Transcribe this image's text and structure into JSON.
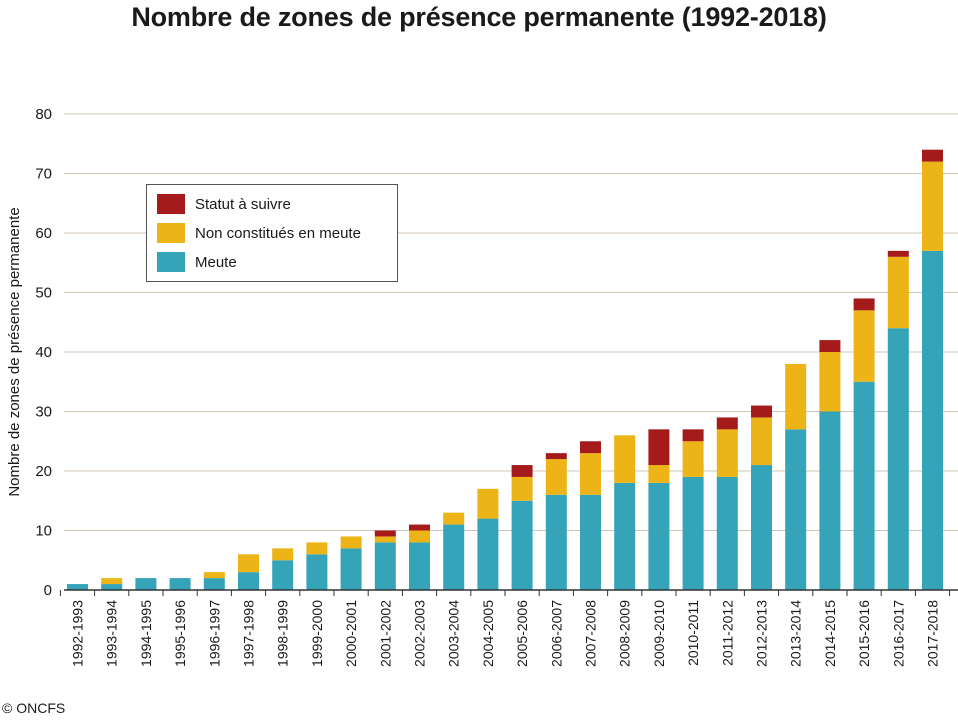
{
  "title": "Nombre de zones de présence permanente (1992-2018)",
  "credit": "© ONCFS",
  "colors": {
    "meute": "#35a4b8",
    "non_constitues": "#ecb416",
    "statut": "#a51b1b",
    "grid": "#cfc4b4",
    "axis": "#333333"
  },
  "legend": {
    "statut": "Statut à suivre",
    "non_constitues": "Non constitués en meute",
    "meute": "Meute"
  },
  "chart_data": {
    "type": "bar",
    "stacked": true,
    "title": "Nombre de zones de présence permanente (1992-2018)",
    "xlabel": "",
    "ylabel": "Nombre de zones de présence permanente",
    "ylim": [
      0,
      80
    ],
    "yticks": [
      0,
      10,
      20,
      30,
      40,
      50,
      60,
      70,
      80
    ],
    "grid": true,
    "legend_position": "top-left",
    "categories": [
      "1992-1993",
      "1993-1994",
      "1994-1995",
      "1995-1996",
      "1996-1997",
      "1997-1998",
      "1998-1999",
      "1999-2000",
      "2000-2001",
      "2001-2002",
      "2002-2003",
      "2003-2004",
      "2004-2005",
      "2005-2006",
      "2006-2007",
      "2007-2008",
      "2008-2009",
      "2009-2010",
      "2010-2011",
      "2011-2012",
      "2012-2013",
      "2013-2014",
      "2014-2015",
      "2015-2016",
      "2016-2017",
      "2017-2018"
    ],
    "series": [
      {
        "name": "Meute",
        "color": "#35a4b8",
        "values": [
          1,
          1,
          2,
          2,
          2,
          3,
          5,
          6,
          7,
          8,
          8,
          11,
          12,
          15,
          16,
          16,
          18,
          18,
          19,
          19,
          21,
          27,
          30,
          35,
          44,
          57
        ]
      },
      {
        "name": "Non constitués en meute",
        "color": "#ecb416",
        "values": [
          0,
          1,
          0,
          0,
          1,
          3,
          2,
          2,
          2,
          1,
          2,
          2,
          5,
          4,
          6,
          7,
          8,
          3,
          6,
          8,
          8,
          11,
          10,
          12,
          12,
          15
        ]
      },
      {
        "name": "Statut à suivre",
        "color": "#a51b1b",
        "values": [
          0,
          0,
          0,
          0,
          0,
          0,
          0,
          0,
          0,
          1,
          1,
          0,
          0,
          2,
          1,
          2,
          0,
          6,
          2,
          2,
          2,
          0,
          2,
          2,
          1,
          2
        ]
      }
    ]
  }
}
